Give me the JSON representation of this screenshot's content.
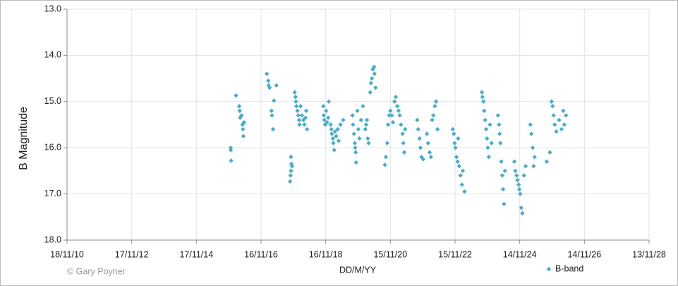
{
  "chart_data": {
    "type": "scatter",
    "y_label": "B Magnitude",
    "x_label": "DD/M/YY",
    "annotation": "© Gary Poyner",
    "legend": "bottom-right",
    "grid": true,
    "y_inverted": true,
    "ylim": [
      18,
      13
    ],
    "yticks": [
      {
        "value": 13,
        "label": "13.0"
      },
      {
        "value": 14,
        "label": "14.0"
      },
      {
        "value": 15,
        "label": "15.0"
      },
      {
        "value": 16,
        "label": "16.0"
      },
      {
        "value": 17,
        "label": "17.0"
      },
      {
        "value": 18,
        "label": "18.0"
      }
    ],
    "xlim": [
      "2010-11-18",
      "2028-11-13"
    ],
    "xticks": [
      {
        "value": "2010-11-18",
        "label": "18/11/10"
      },
      {
        "value": "2012-11-17",
        "label": "17/11/12"
      },
      {
        "value": "2014-11-17",
        "label": "17/11/14"
      },
      {
        "value": "2016-11-16",
        "label": "16/11/16"
      },
      {
        "value": "2018-11-16",
        "label": "16/11/18"
      },
      {
        "value": "2020-11-15",
        "label": "15/11/20"
      },
      {
        "value": "2022-11-15",
        "label": "15/11/22"
      },
      {
        "value": "2024-11-14",
        "label": "14/11/24"
      },
      {
        "value": "2026-11-14",
        "label": "14/11/26"
      },
      {
        "value": "2028-11-13",
        "label": "13/11/28"
      }
    ],
    "x": [
      "2015-12-10",
      "2015-12-10",
      "2015-12-14",
      "2016-02-06",
      "2016-03-14",
      "2016-03-20",
      "2016-03-25",
      "2016-04-10",
      "2016-04-20",
      "2016-04-25",
      "2016-05-01",
      "2016-05-08",
      "2017-01-20",
      "2017-02-06",
      "2017-02-10",
      "2017-02-20",
      "2017-03-14",
      "2017-03-20",
      "2017-04-01",
      "2017-04-10",
      "2017-05-08",
      "2017-10-20",
      "2017-10-25",
      "2017-10-20",
      "2017-10-15",
      "2017-10-10",
      "2017-11-01",
      "2017-12-01",
      "2017-12-10",
      "2017-12-15",
      "2017-12-20",
      "2018-01-01",
      "2018-01-10",
      "2018-01-20",
      "2018-01-25",
      "2018-02-06",
      "2018-02-20",
      "2018-03-10",
      "2018-03-20",
      "2018-04-01",
      "2018-04-10",
      "2018-04-20",
      "2018-10-20",
      "2018-10-25",
      "2018-11-01",
      "2018-11-10",
      "2018-11-20",
      "2018-12-01",
      "2018-12-14",
      "2018-12-20",
      "2019-01-10",
      "2019-01-19",
      "2019-01-25",
      "2019-02-06",
      "2019-02-10",
      "2019-02-20",
      "2019-03-01",
      "2019-03-14",
      "2019-04-01",
      "2019-04-10",
      "2019-05-01",
      "2019-06-01",
      "2019-09-14",
      "2019-09-20",
      "2019-10-01",
      "2019-10-10",
      "2019-10-15",
      "2019-10-20",
      "2019-10-25",
      "2019-11-08",
      "2019-11-20",
      "2019-12-01",
      "2019-12-20",
      "2020-01-10",
      "2020-02-06",
      "2020-02-15",
      "2020-02-24",
      "2020-03-05",
      "2020-03-14",
      "2020-04-01",
      "2020-04-10",
      "2020-04-20",
      "2020-05-01",
      "2020-05-15",
      "2020-05-20",
      "2020-06-01",
      "2020-09-14",
      "2020-09-25",
      "2020-10-10",
      "2020-10-20",
      "2020-11-01",
      "2020-11-15",
      "2020-12-01",
      "2020-12-14",
      "2021-01-01",
      "2021-01-15",
      "2021-02-01",
      "2021-02-15",
      "2021-03-01",
      "2021-03-14",
      "2021-04-01",
      "2021-04-10",
      "2021-04-20",
      "2021-05-01",
      "2021-09-14",
      "2021-09-25",
      "2021-10-10",
      "2021-10-20",
      "2021-11-01",
      "2021-11-20",
      "2022-01-01",
      "2022-01-15",
      "2022-02-01",
      "2022-02-15",
      "2022-03-01",
      "2022-03-15",
      "2022-04-01",
      "2022-04-15",
      "2022-05-01",
      "2022-10-20",
      "2022-11-01",
      "2022-11-10",
      "2022-11-20",
      "2022-12-01",
      "2022-12-14",
      "2023-01-01",
      "2023-01-15",
      "2023-02-01",
      "2023-03-01",
      "2023-02-10",
      "2022-12-20",
      "2023-09-14",
      "2023-09-20",
      "2023-10-01",
      "2023-10-10",
      "2023-10-20",
      "2023-11-01",
      "2023-11-10",
      "2023-11-20",
      "2023-12-01",
      "2023-12-14",
      "2024-01-01",
      "2024-03-14",
      "2024-03-25",
      "2024-04-01",
      "2024-04-10",
      "2024-04-20",
      "2024-05-01",
      "2024-05-10",
      "2024-05-20",
      "2024-06-01",
      "2024-09-14",
      "2024-09-25",
      "2024-10-10",
      "2024-10-20",
      "2024-11-01",
      "2024-11-10",
      "2024-11-20",
      "2024-12-01",
      "2024-12-14",
      "2025-01-01",
      "2025-01-20",
      "2025-03-14",
      "2025-03-25",
      "2025-04-10",
      "2025-04-20",
      "2025-05-01",
      "2025-09-14",
      "2025-10-20",
      "2025-11-08",
      "2025-11-20",
      "2025-12-01",
      "2025-12-14",
      "2026-01-01",
      "2026-02-01",
      "2026-03-01",
      "2026-03-20",
      "2026-04-01",
      "2026-04-20"
    ],
    "series": [
      {
        "name": "B-band",
        "color": "#4bacc6",
        "values": [
          16.05,
          16.0,
          16.28,
          14.87,
          15.1,
          15.2,
          15.35,
          15.3,
          15.5,
          15.6,
          15.75,
          15.45,
          14.4,
          14.55,
          14.65,
          14.7,
          15.2,
          15.3,
          15.6,
          14.98,
          14.65,
          16.2,
          16.35,
          16.5,
          16.6,
          16.73,
          16.4,
          14.8,
          14.9,
          15.0,
          15.1,
          15.2,
          15.3,
          15.4,
          15.5,
          15.1,
          15.3,
          15.4,
          15.5,
          15.35,
          15.2,
          15.6,
          15.1,
          15.3,
          15.4,
          15.5,
          15.2,
          15.45,
          15.35,
          15.0,
          15.5,
          15.6,
          15.7,
          15.8,
          15.9,
          16.05,
          15.65,
          15.75,
          15.6,
          15.85,
          15.5,
          15.4,
          15.3,
          15.5,
          15.7,
          15.9,
          16.0,
          16.1,
          16.32,
          15.2,
          15.6,
          15.8,
          15.4,
          15.1,
          15.6,
          15.5,
          15.4,
          15.8,
          15.9,
          14.8,
          14.6,
          14.5,
          14.3,
          14.25,
          14.4,
          14.7,
          16.37,
          16.2,
          15.9,
          15.5,
          15.3,
          15.2,
          15.3,
          15.45,
          15.0,
          14.9,
          15.1,
          15.2,
          15.3,
          15.5,
          15.7,
          15.9,
          16.1,
          15.6,
          15.4,
          15.6,
          15.8,
          16.0,
          16.2,
          16.25,
          15.7,
          15.9,
          16.1,
          16.2,
          15.4,
          15.3,
          15.1,
          15.0,
          15.6,
          15.6,
          15.7,
          15.9,
          16.0,
          16.2,
          16.3,
          16.4,
          16.6,
          16.8,
          16.95,
          16.5,
          15.8,
          14.8,
          14.9,
          15.0,
          15.2,
          15.4,
          15.6,
          15.8,
          16.0,
          16.2,
          15.5,
          15.9,
          15.3,
          15.5,
          15.7,
          15.9,
          16.3,
          16.6,
          16.9,
          17.22,
          16.5,
          16.3,
          16.5,
          16.6,
          16.7,
          16.8,
          16.9,
          17.0,
          17.3,
          17.42,
          16.6,
          16.4,
          15.5,
          15.7,
          16.0,
          16.4,
          16.2,
          16.3,
          16.1,
          15.0,
          15.1,
          15.3,
          15.5,
          15.65,
          15.4,
          15.6,
          15.2,
          15.5,
          15.3
        ]
      }
    ]
  }
}
